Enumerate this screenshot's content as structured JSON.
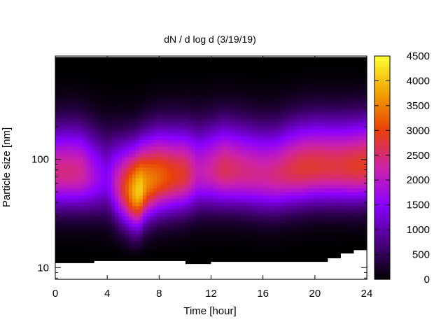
{
  "chart_data": {
    "type": "heatmap",
    "title": "dN / d log d (3/19/19)",
    "xlabel": "Time [hour]",
    "ylabel": "Particle size [nm]",
    "xlim": [
      0,
      24
    ],
    "ylim": [
      7.8,
      900
    ],
    "y_scale": "log",
    "x_ticks": [
      "0",
      "4",
      "8",
      "12",
      "16",
      "20",
      "24"
    ],
    "y_ticks": [
      "10",
      "100"
    ],
    "colorbar": {
      "range": [
        0,
        4500
      ],
      "ticks": [
        "0",
        "500",
        "1000",
        "1500",
        "2000",
        "2500",
        "3000",
        "3500",
        "4000",
        "4500"
      ],
      "colors": [
        "#000000",
        "#4b0082",
        "#8a00ff",
        "#cc22aa",
        "#e8400a",
        "#f0a000",
        "#ffff33"
      ]
    },
    "time_hours": [
      0,
      1,
      2,
      3,
      4,
      5,
      6,
      6.5,
      7,
      8,
      9,
      10,
      11,
      12,
      13,
      14,
      15,
      16,
      17,
      18,
      19,
      20,
      21,
      22,
      23,
      24
    ],
    "peak_concentration": [
      2400,
      2450,
      2350,
      1800,
      1400,
      2500,
      3800,
      4200,
      3600,
      3300,
      3000,
      2800,
      2100,
      2300,
      2650,
      2500,
      2400,
      2350,
      2450,
      2650,
      2800,
      2800,
      2750,
      2750,
      2850,
      2900
    ],
    "peak_diameter_nm": [
      75,
      76,
      75,
      70,
      65,
      55,
      50,
      52,
      60,
      68,
      70,
      72,
      75,
      78,
      80,
      78,
      75,
      72,
      72,
      78,
      82,
      85,
      85,
      85,
      85,
      88
    ],
    "lower_cutoff_nm": [
      11,
      11,
      11,
      11.5,
      11.5,
      11.5,
      11.5,
      11.5,
      11.5,
      11.5,
      11.5,
      10.8,
      10.8,
      11.3,
      11.3,
      11.3,
      11.3,
      11.3,
      11.3,
      11.3,
      11.3,
      11.3,
      12.2,
      13.5,
      14.5,
      14.5
    ],
    "upper_cutoff_nm": 880
  }
}
